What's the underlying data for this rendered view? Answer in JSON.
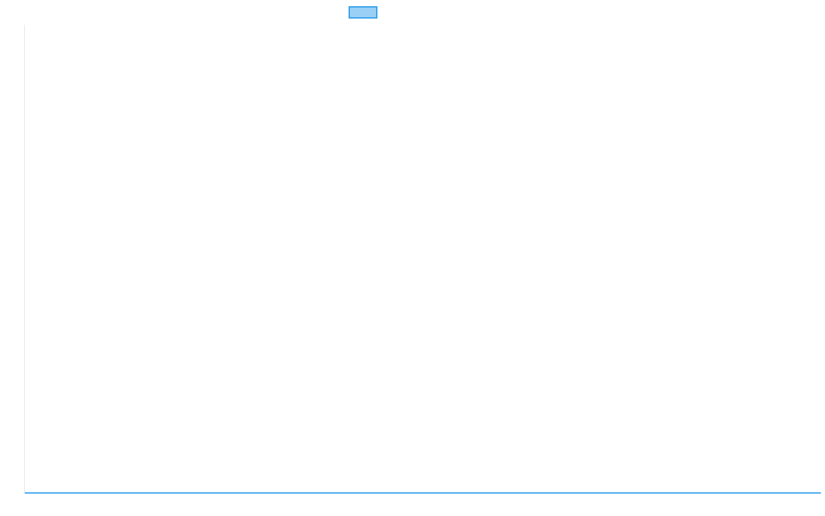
{
  "chart_data": {
    "type": "line",
    "title": "",
    "xlabel": "",
    "ylabel": "",
    "categories": [],
    "series": [
      {
        "values": [],
        "color": "#36a2eb",
        "fill": "#9ad0f5"
      }
    ],
    "legend": "top",
    "grid": false,
    "axis_color": "#e5e5e5"
  }
}
